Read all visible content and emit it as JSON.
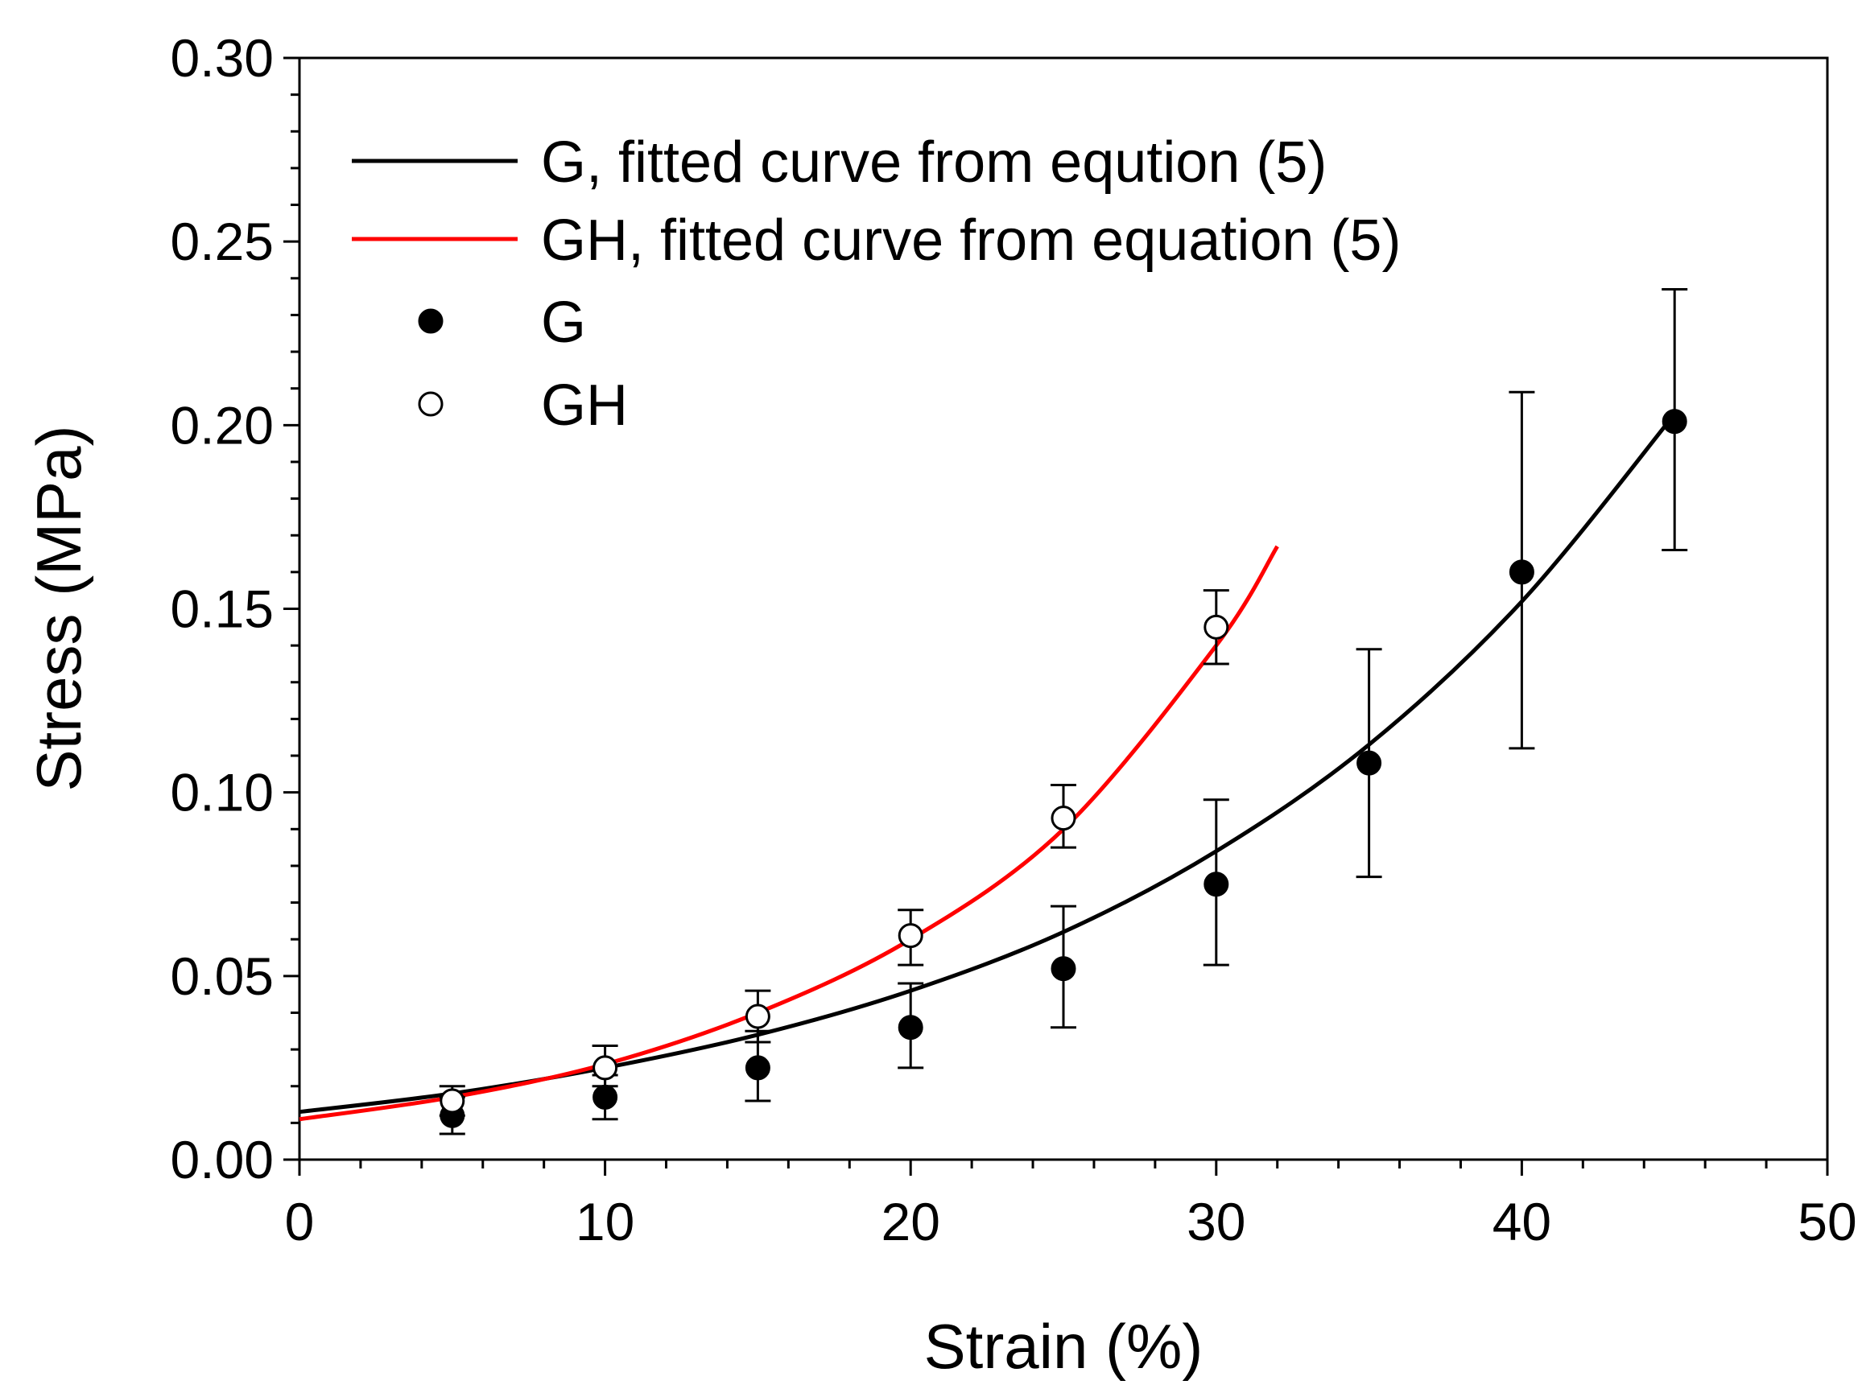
{
  "chart_data": {
    "type": "scatter",
    "title": "",
    "xlabel": "Strain (%)",
    "ylabel": "Stress (MPa)",
    "xlim": [
      0,
      50
    ],
    "ylim": [
      0,
      0.3
    ],
    "x_ticks": [
      0,
      10,
      20,
      30,
      40,
      50
    ],
    "x_tick_labels": [
      "0",
      "10",
      "20",
      "30",
      "40",
      "50"
    ],
    "y_ticks": [
      0,
      0.05,
      0.1,
      0.15,
      0.2,
      0.25,
      0.3
    ],
    "y_tick_labels": [
      "0.00",
      "0.05",
      "0.10",
      "0.15",
      "0.20",
      "0.25",
      "0.30"
    ],
    "grid": false,
    "legend_position": "top-left",
    "series": [
      {
        "name": "G",
        "kind": "points",
        "marker": "filled-circle",
        "color": "#000000",
        "x": [
          5,
          10,
          15,
          20,
          25,
          30,
          35,
          40,
          45
        ],
        "y": [
          0.012,
          0.017,
          0.025,
          0.036,
          0.052,
          0.075,
          0.108,
          0.16,
          0.201
        ],
        "err_low": [
          0.007,
          0.011,
          0.016,
          0.025,
          0.036,
          0.053,
          0.077,
          0.112,
          0.166
        ],
        "err_high": [
          0.017,
          0.023,
          0.035,
          0.048,
          0.069,
          0.098,
          0.139,
          0.209,
          0.237
        ]
      },
      {
        "name": "GH",
        "kind": "points",
        "marker": "open-circle",
        "color": "#000000",
        "x": [
          5,
          10,
          15,
          20,
          25,
          30
        ],
        "y": [
          0.016,
          0.025,
          0.039,
          0.061,
          0.093,
          0.145
        ],
        "err_low": [
          0.012,
          0.02,
          0.032,
          0.053,
          0.085,
          0.135
        ],
        "err_high": [
          0.02,
          0.031,
          0.046,
          0.068,
          0.102,
          0.155
        ]
      },
      {
        "name": "G, fitted curve from eqution (5)",
        "kind": "line",
        "color": "#000000",
        "x": [
          0,
          5,
          10,
          15,
          20,
          25,
          30,
          35,
          40,
          45
        ],
        "y": [
          0.013,
          0.018,
          0.025,
          0.034,
          0.046,
          0.062,
          0.084,
          0.113,
          0.152,
          0.203
        ]
      },
      {
        "name": "GH, fitted curve from equation (5)",
        "kind": "line",
        "color": "#ff0000",
        "x": [
          0,
          5,
          10,
          15,
          20,
          25,
          30,
          32
        ],
        "y": [
          0.011,
          0.017,
          0.026,
          0.04,
          0.06,
          0.09,
          0.14,
          0.167
        ]
      }
    ],
    "legend": [
      {
        "label": "G, fitted curve from eqution (5)",
        "symbol": "line",
        "color": "#000000"
      },
      {
        "label": "GH, fitted curve from equation (5)",
        "symbol": "line",
        "color": "#ff0000"
      },
      {
        "label": "G",
        "symbol": "filled-circle",
        "color": "#000000"
      },
      {
        "label": "GH",
        "symbol": "open-circle",
        "color": "#000000"
      }
    ]
  }
}
